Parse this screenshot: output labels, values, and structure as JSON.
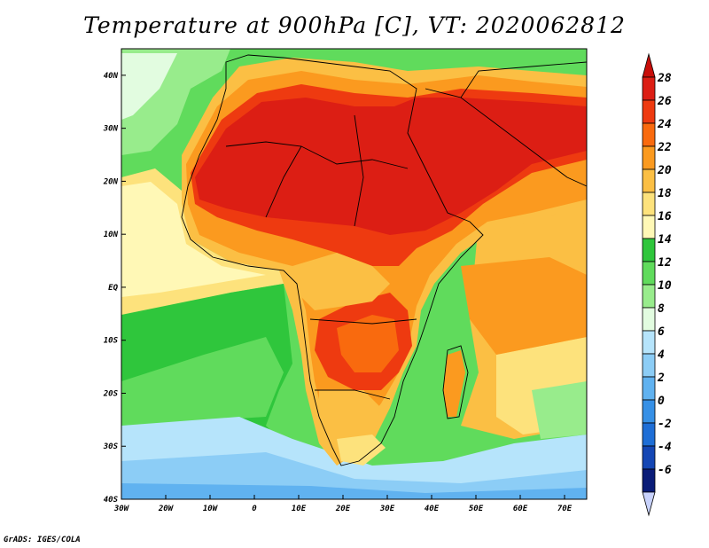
{
  "title": "Temperature at 900hPa [C], VT: 2020062812",
  "credit": "GrADS: IGES/COLA",
  "map": {
    "lon_range": [
      -30,
      75
    ],
    "lat_range": [
      -40,
      45
    ],
    "lon_ticks": [
      {
        "value": -30,
        "label": "30W"
      },
      {
        "value": -20,
        "label": "20W"
      },
      {
        "value": -10,
        "label": "10W"
      },
      {
        "value": 0,
        "label": "0"
      },
      {
        "value": 10,
        "label": "10E"
      },
      {
        "value": 20,
        "label": "20E"
      },
      {
        "value": 30,
        "label": "30E"
      },
      {
        "value": 40,
        "label": "40E"
      },
      {
        "value": 50,
        "label": "50E"
      },
      {
        "value": 60,
        "label": "60E"
      },
      {
        "value": 70,
        "label": "70E"
      }
    ],
    "lat_ticks": [
      {
        "value": 40,
        "label": "40N"
      },
      {
        "value": 30,
        "label": "30N"
      },
      {
        "value": 20,
        "label": "20N"
      },
      {
        "value": 10,
        "label": "10N"
      },
      {
        "value": 0,
        "label": "EQ"
      },
      {
        "value": -10,
        "label": "10S"
      },
      {
        "value": -20,
        "label": "20S"
      },
      {
        "value": -30,
        "label": "30S"
      },
      {
        "value": -40,
        "label": "40S"
      }
    ]
  },
  "colorbar": {
    "labels": [
      "28",
      "26",
      "24",
      "22",
      "20",
      "18",
      "16",
      "14",
      "12",
      "10",
      "8",
      "6",
      "4",
      "2",
      "0",
      "-2",
      "-4",
      "-6"
    ],
    "colors": [
      "#dc1e14",
      "#ee3a10",
      "#f96a0e",
      "#fb9a1f",
      "#fbbf44",
      "#fde27c",
      "#fff8b6",
      "#2fc63c",
      "#60db5c",
      "#98ec8c",
      "#e2fce0",
      "#b6e4fb",
      "#8ccdf6",
      "#60b2f0",
      "#3690e6",
      "#1e6ed6",
      "#1446b4",
      "#0a1c78"
    ],
    "top_arrow_color": "#c80e0a",
    "bottom_arrow_color": "#c8d2fc"
  }
}
